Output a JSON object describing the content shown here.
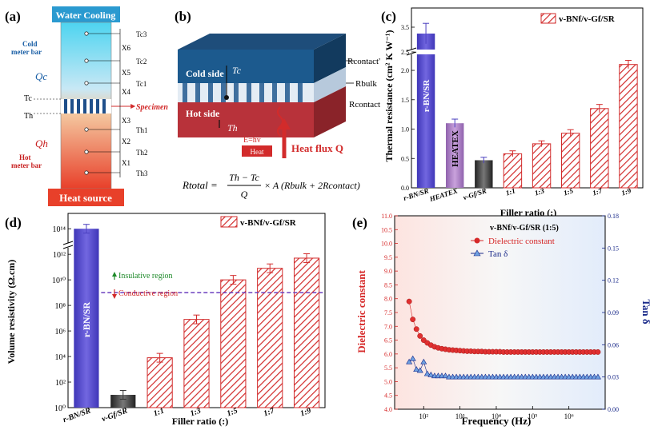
{
  "panels": {
    "a": {
      "label": "(a)",
      "top": "Water Cooling",
      "bottom": "Heat source",
      "cold": "Cold\nmeter bar",
      "hot": "Hot\nmeter bar",
      "qc": "Qc",
      "qh": "Qh",
      "specimen": "Specimen",
      "tc": "Tc",
      "th": "Th",
      "x_labels": [
        "X6",
        "X5",
        "X4",
        "X3",
        "X2",
        "X1"
      ],
      "t_labels_top": [
        "Tc3",
        "Tc2",
        "Tc1"
      ],
      "t_labels_bot": [
        "Th1",
        "Th2",
        "Th3"
      ]
    },
    "b": {
      "label": "(b)",
      "cold_side": "Cold side",
      "hot_side": "Hot side",
      "tc": "Tc",
      "th": "Th",
      "r_contact_top": "Rcontact'",
      "r_bulk": "Rbulk",
      "r_contact": "Rcontact",
      "ehv": "E=hv",
      "heat": "Heat",
      "flux": "Heat flux Q",
      "formula_left": "Rtotal =",
      "formula_num": "Th − Tc",
      "formula_den": "Q",
      "formula_right": "× A (Rbulk + 2Rcontact)"
    }
  },
  "chart_data": [
    {
      "panel": "(c)",
      "type": "bar",
      "ylabel": "Thermal resistance (cm² K W⁻¹)",
      "xlabel": "Filler ratio (:)",
      "legend": "v-BNf/v-Gf/SR",
      "categories": [
        "r-BN/SR",
        "HEATEX",
        "v-Gf/SR",
        "1:1",
        "1:3",
        "1:5",
        "1:7",
        "1:9"
      ],
      "values": [
        3.45,
        1.1,
        0.47,
        0.58,
        0.75,
        0.93,
        1.35,
        2.1
      ],
      "errors": [
        0.08,
        0.07,
        0.05,
        0.05,
        0.05,
        0.06,
        0.07,
        0.07
      ],
      "bar_labels": [
        "r-BN/SR",
        "HEATEX",
        "",
        "",
        "",
        "",
        "",
        ""
      ],
      "yticks": [
        "0.0",
        "0.5",
        "1.0",
        "1.5",
        "2.0",
        "2.5",
        "3.5"
      ],
      "ylim": [
        0,
        3.6
      ],
      "axis_break": [
        2.6,
        3.3
      ]
    },
    {
      "panel": "(d)",
      "type": "bar",
      "ylabel": "Volume resistivity (Ω.cm)",
      "xlabel": "Filler ratio (:)",
      "legend": "v-BNf/v-Gf/SR",
      "categories": [
        "r-BN/SR",
        "v-Gf/SR",
        "1:1",
        "1:3",
        "1:5",
        "1:7",
        "1:9"
      ],
      "values": [
        100000000000000.0,
        10,
        8000,
        8000000.0,
        10000000000.0,
        80000000000.0,
        500000000000.0
      ],
      "bar_labels": [
        "r-BN/SR",
        "",
        "",
        "",
        "",
        "",
        ""
      ],
      "yticks": [
        "10⁰",
        "10²",
        "10⁴",
        "10⁶",
        "10⁸",
        "10¹⁰",
        "10¹²",
        "10¹⁴"
      ],
      "threshold": 1000000000.0,
      "insulative": "Insulative region",
      "conductive": "Conductive region",
      "scale": "log"
    },
    {
      "panel": "(e)",
      "type": "scatter",
      "title": "v-BNf/v-Gf/SR (1:5)",
      "xlabel": "Frequency (Hz)",
      "ylabel_left": "Dielectric constant",
      "ylabel_right": "Tan δ",
      "xticks": [
        "10²",
        "10³",
        "10⁴",
        "10⁵",
        "10⁶"
      ],
      "yticks_left": [
        "4.0",
        "4.5",
        "5.0",
        "5.5",
        "6.0",
        "6.5",
        "7.0",
        "7.5",
        "8.0",
        "8.5",
        "9.0",
        "9.5",
        "10.0",
        "10.5",
        "11.0"
      ],
      "yticks_right": [
        "0.00",
        "0.03",
        "0.06",
        "0.09",
        "0.12",
        "0.15",
        "0.18"
      ],
      "ylim_left": [
        4,
        11
      ],
      "ylim_right": [
        0,
        0.18
      ],
      "series": [
        {
          "name": "Dielectric constant",
          "axis": "left",
          "logx": [
            1.6,
            1.7,
            1.8,
            1.9,
            2.0,
            2.1,
            2.2,
            2.3,
            2.4,
            2.5,
            2.6,
            2.7,
            2.8,
            2.9,
            3.0,
            3.1,
            3.2,
            3.3,
            3.4,
            3.5,
            3.6,
            3.7,
            3.8,
            3.9,
            4.0,
            4.1,
            4.2,
            4.3,
            4.4,
            4.5,
            4.6,
            4.7,
            4.8,
            4.9,
            5.0,
            5.1,
            5.2,
            5.3,
            5.4,
            5.5,
            5.6,
            5.7,
            5.8,
            5.9,
            6.0,
            6.1,
            6.2,
            6.3,
            6.4,
            6.5,
            6.6,
            6.7,
            6.8
          ],
          "values": [
            7.9,
            7.25,
            6.9,
            6.65,
            6.5,
            6.4,
            6.32,
            6.26,
            6.22,
            6.19,
            6.17,
            6.15,
            6.14,
            6.13,
            6.12,
            6.11,
            6.1,
            6.1,
            6.09,
            6.09,
            6.09,
            6.08,
            6.08,
            6.08,
            6.08,
            6.08,
            6.07,
            6.07,
            6.07,
            6.07,
            6.07,
            6.07,
            6.07,
            6.07,
            6.07,
            6.07,
            6.07,
            6.07,
            6.07,
            6.07,
            6.07,
            6.07,
            6.07,
            6.07,
            6.07,
            6.07,
            6.07,
            6.07,
            6.07,
            6.07,
            6.07,
            6.07,
            6.07
          ]
        },
        {
          "name": "Tan δ",
          "axis": "right",
          "logx": [
            1.6,
            1.7,
            1.8,
            1.9,
            2.0,
            2.1,
            2.2,
            2.3,
            2.4,
            2.5,
            2.6,
            2.7,
            2.8,
            2.9,
            3.0,
            3.1,
            3.2,
            3.3,
            3.4,
            3.5,
            3.6,
            3.7,
            3.8,
            3.9,
            4.0,
            4.1,
            4.2,
            4.3,
            4.4,
            4.5,
            4.6,
            4.7,
            4.8,
            4.9,
            5.0,
            5.1,
            5.2,
            5.3,
            5.4,
            5.5,
            5.6,
            5.7,
            5.8,
            5.9,
            6.0,
            6.1,
            6.2,
            6.3,
            6.4,
            6.5,
            6.6,
            6.7,
            6.8
          ],
          "values": [
            0.044,
            0.047,
            0.037,
            0.036,
            0.044,
            0.033,
            0.032,
            0.031,
            0.031,
            0.031,
            0.031,
            0.03,
            0.03,
            0.03,
            0.03,
            0.03,
            0.03,
            0.03,
            0.03,
            0.03,
            0.03,
            0.03,
            0.03,
            0.03,
            0.03,
            0.03,
            0.03,
            0.03,
            0.03,
            0.03,
            0.03,
            0.03,
            0.03,
            0.03,
            0.03,
            0.03,
            0.03,
            0.03,
            0.03,
            0.03,
            0.03,
            0.03,
            0.03,
            0.03,
            0.03,
            0.03,
            0.03,
            0.03,
            0.03,
            0.03,
            0.03,
            0.03,
            0.03
          ]
        }
      ]
    }
  ],
  "colors": {
    "blue_bar": "#5b4fcf",
    "purple_bar": "#a97fc0",
    "dark_bar": "#444444",
    "red_hatch": "#d22b2b",
    "dielectric": "#d62828",
    "tan": "#1a2a8a"
  }
}
